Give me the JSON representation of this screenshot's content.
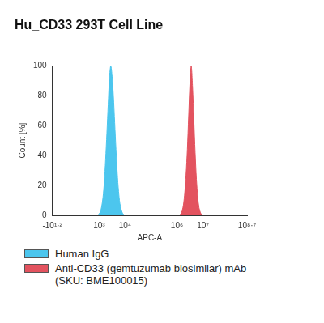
{
  "chart_data": {
    "type": "area",
    "title": "Hu_CD33 293T Cell Line",
    "x_label": "APC-A",
    "y_label": "Count [%]",
    "xlim": [
      1.2,
      8.7
    ],
    "xticks": [
      {
        "value": 1.2,
        "label": "-10¹·²"
      },
      {
        "value": 3,
        "label": "10³"
      },
      {
        "value": 4,
        "label": "10⁴"
      },
      {
        "value": 6,
        "label": "10⁶"
      },
      {
        "value": 7,
        "label": "10⁷"
      },
      {
        "value": 8.7,
        "label": "10⁸·⁷"
      }
    ],
    "ylim": [
      0,
      100
    ],
    "yticks": [
      0,
      20,
      40,
      60,
      80,
      100
    ],
    "grid": false,
    "legend": "bottom",
    "series": [
      {
        "name": "Human IgG",
        "color": "#4cc6ee",
        "x": [
          2.9,
          2.95,
          3.0,
          3.05,
          3.1,
          3.15,
          3.2,
          3.25,
          3.3,
          3.35,
          3.4,
          3.45,
          3.5,
          3.55,
          3.6,
          3.65,
          3.7,
          3.75,
          3.8,
          3.85,
          3.9,
          3.95,
          4.0
        ],
        "values": [
          0,
          0.3,
          1,
          2.5,
          6,
          12,
          22,
          37,
          55,
          74,
          92,
          100,
          93,
          80,
          62,
          44,
          28,
          16,
          8,
          4,
          1.5,
          0.5,
          0
        ]
      },
      {
        "name": "Anti-CD33 (gemtuzumab biosimilar) mAb (SKU: BME100015)",
        "color": "#e3535f",
        "x": [
          6.05,
          6.1,
          6.15,
          6.2,
          6.25,
          6.3,
          6.35,
          6.4,
          6.45,
          6.5,
          6.55,
          6.6,
          6.65,
          6.7,
          6.75,
          6.8,
          6.85,
          6.9,
          6.95,
          7.0
        ],
        "values": [
          0,
          0.3,
          1,
          3,
          7,
          15,
          27,
          44,
          66,
          88,
          100,
          86,
          64,
          42,
          24,
          12,
          5,
          2,
          0.5,
          0
        ]
      }
    ]
  }
}
